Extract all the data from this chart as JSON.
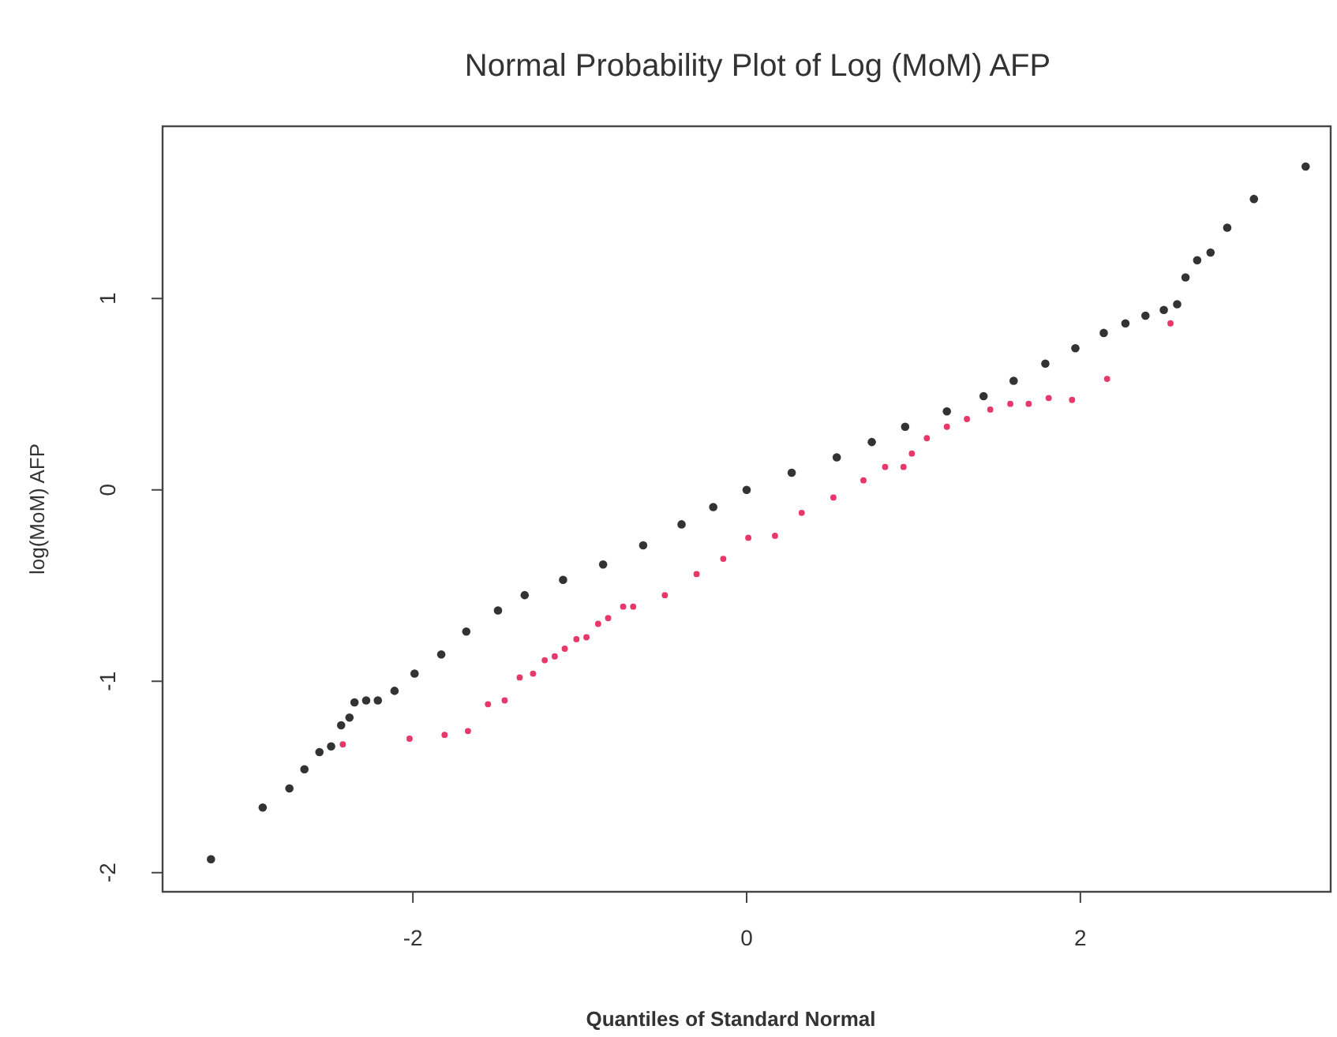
{
  "chart_data": {
    "type": "scatter",
    "title": "Normal Probability Plot of Log (MoM) AFP",
    "xlabel": "Quantiles of Standard Normal",
    "ylabel": "log(MoM) AFP",
    "xlim": [
      -3.5,
      3.5
    ],
    "ylim": [
      -2.1,
      1.9
    ],
    "xticks": [
      -2,
      0,
      2
    ],
    "yticks": [
      -2,
      -1,
      0,
      1
    ],
    "grid": false,
    "marker": "circle",
    "series": [
      {
        "color": "#333333",
        "x": [
          -3.21,
          -2.9,
          -2.74,
          -2.65,
          -2.56,
          -2.49,
          -2.43,
          -2.38,
          -2.35,
          -2.28,
          -2.21,
          -2.11,
          -1.99,
          -1.83,
          -1.68,
          -1.49,
          -1.33,
          -1.1,
          -0.86,
          -0.62,
          -0.39,
          -0.2,
          0,
          0.27,
          0.54,
          0.75,
          0.95,
          1.2,
          1.42,
          1.6,
          1.79,
          1.97,
          2.14,
          2.27,
          2.39,
          2.5,
          2.58,
          2.63,
          2.7,
          2.78,
          2.88,
          3.04,
          3.35
        ],
        "values": [
          -1.93,
          -1.66,
          -1.56,
          -1.46,
          -1.37,
          -1.34,
          -1.23,
          -1.19,
          -1.11,
          -1.1,
          -1.1,
          -1.05,
          -0.96,
          -0.86,
          -0.74,
          -0.63,
          -0.55,
          -0.47,
          -0.39,
          -0.29,
          -0.18,
          -0.09,
          0,
          0.09,
          0.17,
          0.25,
          0.33,
          0.41,
          0.49,
          0.57,
          0.66,
          0.74,
          0.82,
          0.87,
          0.91,
          0.94,
          0.97,
          1.11,
          1.2,
          1.24,
          1.37,
          1.52,
          1.69
        ]
      },
      {
        "color": "#e8386a",
        "x": [
          -2.42,
          -2.02,
          -1.81,
          -1.67,
          -1.55,
          -1.45,
          -1.36,
          -1.28,
          -1.21,
          -1.15,
          -1.09,
          -1.02,
          -0.96,
          -0.89,
          -0.83,
          -0.74,
          -0.68,
          -0.49,
          -0.3,
          -0.14,
          0.01,
          0.17,
          0.33,
          0.52,
          0.7,
          0.83,
          0.94,
          0.99,
          1.08,
          1.2,
          1.32,
          1.46,
          1.58,
          1.69,
          1.81,
          1.95,
          2.16,
          2.54
        ],
        "values": [
          -1.33,
          -1.3,
          -1.28,
          -1.26,
          -1.12,
          -1.1,
          -0.98,
          -0.96,
          -0.89,
          -0.87,
          -0.83,
          -0.78,
          -0.77,
          -0.7,
          -0.67,
          -0.61,
          -0.61,
          -0.55,
          -0.44,
          -0.36,
          -0.25,
          -0.24,
          -0.12,
          -0.04,
          0.05,
          0.12,
          0.12,
          0.19,
          0.27,
          0.33,
          0.37,
          0.42,
          0.45,
          0.45,
          0.48,
          0.47,
          0.58,
          0.87
        ]
      }
    ]
  }
}
